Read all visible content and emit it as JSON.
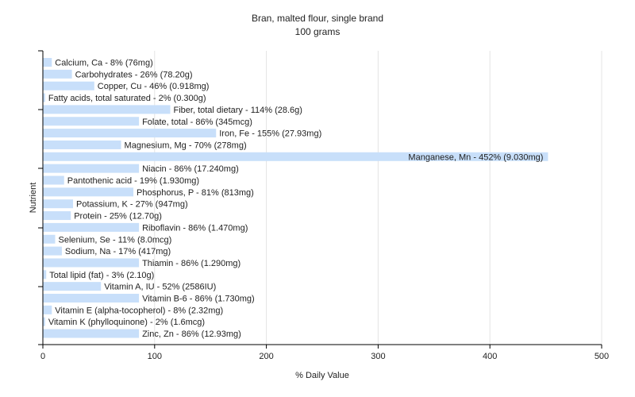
{
  "chart_data": {
    "type": "bar",
    "orientation": "horizontal",
    "title": "Bran, malted flour, single brand",
    "subtitle": "100 grams",
    "xlabel": "% Daily Value",
    "ylabel": "Nutrient",
    "xlim": [
      0,
      500
    ],
    "xticks": [
      0,
      100,
      200,
      300,
      400,
      500
    ],
    "grid": true,
    "bar_color": "#c8dffa",
    "categories": [
      "Calcium, Ca",
      "Carbohydrates",
      "Copper, Cu",
      "Fatty acids, total saturated",
      "Fiber, total dietary",
      "Folate, total",
      "Iron, Fe",
      "Magnesium, Mg",
      "Manganese, Mn",
      "Niacin",
      "Pantothenic acid",
      "Phosphorus, P",
      "Potassium, K",
      "Protein",
      "Riboflavin",
      "Selenium, Se",
      "Sodium, Na",
      "Thiamin",
      "Total lipid (fat)",
      "Vitamin A, IU",
      "Vitamin B-6",
      "Vitamin E (alpha-tocopherol)",
      "Vitamin K (phylloquinone)",
      "Zinc, Zn"
    ],
    "values": [
      8,
      26,
      46,
      2,
      114,
      86,
      155,
      70,
      452,
      86,
      19,
      81,
      27,
      25,
      86,
      11,
      17,
      86,
      3,
      52,
      86,
      8,
      2,
      86
    ],
    "labels": [
      "Calcium, Ca - 8% (76mg)",
      "Carbohydrates - 26% (78.20g)",
      "Copper, Cu - 46% (0.918mg)",
      "Fatty acids, total saturated - 2% (0.300g)",
      "Fiber, total dietary - 114% (28.6g)",
      "Folate, total - 86% (345mcg)",
      "Iron, Fe - 155% (27.93mg)",
      "Magnesium, Mg - 70% (278mg)",
      "Manganese, Mn - 452% (9.030mg)",
      "Niacin - 86% (17.240mg)",
      "Pantothenic acid - 19% (1.930mg)",
      "Phosphorus, P - 81% (813mg)",
      "Potassium, K - 27% (947mg)",
      "Protein - 25% (12.70g)",
      "Riboflavin - 86% (1.470mg)",
      "Selenium, Se - 11% (8.0mcg)",
      "Sodium, Na - 17% (417mg)",
      "Thiamin - 86% (1.290mg)",
      "Total lipid (fat) - 3% (2.10g)",
      "Vitamin A, IU - 52% (2586IU)",
      "Vitamin B-6 - 86% (1.730mg)",
      "Vitamin E (alpha-tocopherol) - 8% (2.32mg)",
      "Vitamin K (phylloquinone) - 2% (1.6mcg)",
      "Zinc, Zn - 86% (12.93mg)"
    ]
  }
}
